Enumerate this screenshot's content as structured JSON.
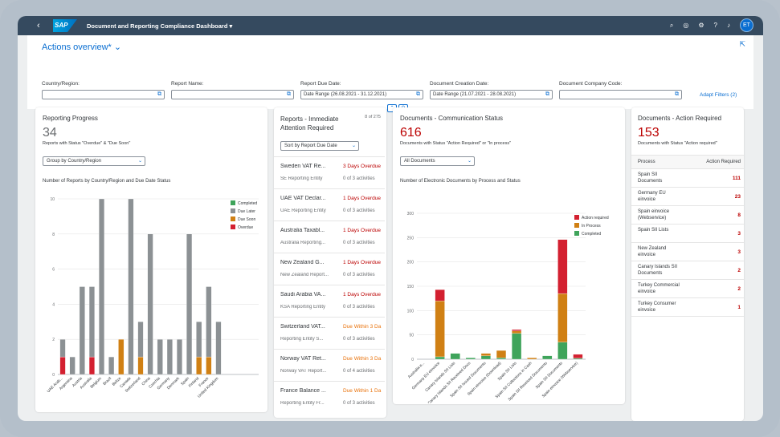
{
  "shell": {
    "back_icon": "back-icon",
    "logo_text": "SAP",
    "title": "Document and Reporting Compliance Dashboard",
    "user_initials": "ET"
  },
  "filterbar": {
    "variant": "Actions overview*",
    "fields": [
      {
        "label": "Country/Region:",
        "value": ""
      },
      {
        "label": "Report Name:",
        "value": ""
      },
      {
        "label": "Report Due Date:",
        "value": "Date Range (26.08.2021 - 31.12.2021)"
      },
      {
        "label": "Document Creation Date:",
        "value": "Date Range (21.07.2021 - 28.08.2021)"
      },
      {
        "label": "Document Company Code:",
        "value": ""
      }
    ],
    "adapt_filters": "Adapt Filters (2)"
  },
  "reporting_progress": {
    "title": "Reporting Progress",
    "kpi": "34",
    "kpi_sub": "Reports with Status \"Overdue\" & \"Due Soon\"",
    "group_by": "Group by Country/Region",
    "chart_title": "Number of Reports by Country/Region and Due Date Status"
  },
  "immediate": {
    "title_line1": "Reports - Immediate",
    "title_line2": "Attention Required",
    "count": "8 of 275",
    "sort": "Sort by Report Due Date",
    "items": [
      {
        "name": "Sweden VAT Re...",
        "entity": "SE Reporting Entity",
        "status": "3 Days Overdue",
        "activities": "0 of 3 activities",
        "color": "#bb0000"
      },
      {
        "name": "UAE VAT Declar...",
        "entity": "UAE Reporting Entity",
        "status": "1 Days Overdue",
        "activities": "0 of 3 activities",
        "color": "#bb0000"
      },
      {
        "name": "Australia Taxabl...",
        "entity": "Australia Reporting...",
        "status": "1 Days Overdue",
        "activities": "0 of 3 activities",
        "color": "#bb0000"
      },
      {
        "name": "New Zealand G...",
        "entity": "New Zealand Report...",
        "status": "1 Days Overdue",
        "activities": "0 of 3 activities",
        "color": "#bb0000"
      },
      {
        "name": "Saudi Arabia VA...",
        "entity": "KSA Reporting Entity",
        "status": "1 Days Overdue",
        "activities": "0 of 3 activities",
        "color": "#bb0000"
      },
      {
        "name": "Switzerland VAT...",
        "entity": "Reporting Entity S...",
        "status": "Due Within 3 Da",
        "activities": "0 of 3 activities",
        "color": "#e9730c"
      },
      {
        "name": "Norway VAT Ret...",
        "entity": "Norway VAT Report...",
        "status": "Due Within 3 Da",
        "activities": "0 of 4 activities",
        "color": "#e9730c"
      },
      {
        "name": "France Balance ...",
        "entity": "Reporting Entity Fr...",
        "status": "Due Within 1 Da",
        "activities": "0 of 3 activities",
        "color": "#e9730c"
      }
    ]
  },
  "communication": {
    "title": "Documents - Communication Status",
    "kpi": "616",
    "kpi_sub": "Documents with Status \"Action Required\" or \"In process\"",
    "filter": "All Documents",
    "chart_title": "Number of Electronic Documents by Process and Status"
  },
  "action_required": {
    "title": "Documents - Action Required",
    "kpi": "153",
    "kpi_sub": "Documents with Status \"Action required\"",
    "col_process": "Process",
    "col_count": "Action Required",
    "rows": [
      {
        "process_l1": "Spain SII",
        "process_l2": "Documents",
        "count": "111"
      },
      {
        "process_l1": "Germany EU",
        "process_l2": "einvoice",
        "count": "23"
      },
      {
        "process_l1": "Spain einvoice",
        "process_l2": "(Webservice)",
        "count": "8"
      },
      {
        "process_l1": "Spain SII Lists",
        "process_l2": "",
        "count": "3"
      },
      {
        "process_l1": "New Zealand",
        "process_l2": "einvoice",
        "count": "3"
      },
      {
        "process_l1": "Canary Islands SII",
        "process_l2": "Documents",
        "count": "2"
      },
      {
        "process_l1": "Turkey Commercial",
        "process_l2": "einvoice",
        "count": "2"
      },
      {
        "process_l1": "Turkey Consumer",
        "process_l2": "einvoice",
        "count": "1"
      }
    ]
  },
  "colors": {
    "overdue": "#d32030",
    "due_soon": "#d08014",
    "due_later": "#8c9194",
    "completed": "#3fa45b",
    "action_required": "#d32030",
    "in_process": "#d08014",
    "accent": "#0a6ed1"
  },
  "chart_data": [
    {
      "type": "bar",
      "stacked": true,
      "title": "Number of Reports by Country/Region and Due Date Status",
      "categories": [
        "UAE Arab...",
        "Argentina",
        "Austria",
        "Australia",
        "Belgium",
        "Brazil",
        "Belize",
        "Canada",
        "Switzerland",
        "China",
        "Czechia",
        "Germany",
        "Denmark",
        "Spain",
        "Finland",
        "France",
        "United Kingdom"
      ],
      "series": [
        {
          "name": "Overdue",
          "values": [
            1,
            0,
            0,
            1,
            0,
            0,
            0,
            0,
            0,
            0,
            0,
            0,
            0,
            0,
            0,
            0,
            0
          ]
        },
        {
          "name": "Due Soon",
          "values": [
            0,
            0,
            0,
            0,
            0,
            0,
            2,
            0,
            1,
            0,
            0,
            0,
            0,
            0,
            1,
            1,
            0
          ]
        },
        {
          "name": "Due Later",
          "values": [
            1,
            1,
            5,
            4,
            10,
            1,
            0,
            10,
            2,
            8,
            2,
            2,
            2,
            8,
            2,
            4,
            3
          ]
        },
        {
          "name": "Completed",
          "values": [
            0,
            0,
            0,
            0,
            0,
            0,
            0,
            0,
            0,
            0,
            0,
            0,
            0,
            0,
            0,
            0,
            0
          ]
        }
      ],
      "ylim": [
        0,
        10
      ],
      "yticks": [
        0,
        2,
        4,
        6,
        8,
        10
      ],
      "legend": "top-right"
    },
    {
      "type": "bar",
      "stacked": true,
      "title": "Number of Electronic Documents by Process and Status",
      "categories": [
        "Australia e...",
        "Germany EU einvoice",
        "Canary Islands SII Lists",
        "Canary Islands SII Received Docs",
        "Spain SII Issued Documents",
        "Spain einvoice (Download)",
        "Spain SII Lists",
        "Spain SII Collections in Cash",
        "Spain SII Received Documents",
        "Spain SII Documents",
        "Spain einvoice (Webservice)"
      ],
      "series": [
        {
          "name": "Action required",
          "values": [
            0,
            23,
            0,
            0,
            0,
            0,
            3,
            0,
            0,
            111,
            8
          ]
        },
        {
          "name": "In Process",
          "values": [
            0,
            115,
            0,
            0,
            5,
            15,
            5,
            3,
            0,
            100,
            0
          ]
        },
        {
          "name": "Completed",
          "values": [
            0,
            5,
            12,
            3,
            7,
            3,
            53,
            0,
            7,
            35,
            2
          ]
        }
      ],
      "ylim": [
        0,
        300
      ],
      "yticks": [
        0,
        50,
        100,
        150,
        200,
        250,
        300
      ],
      "legend": "top-right"
    }
  ]
}
